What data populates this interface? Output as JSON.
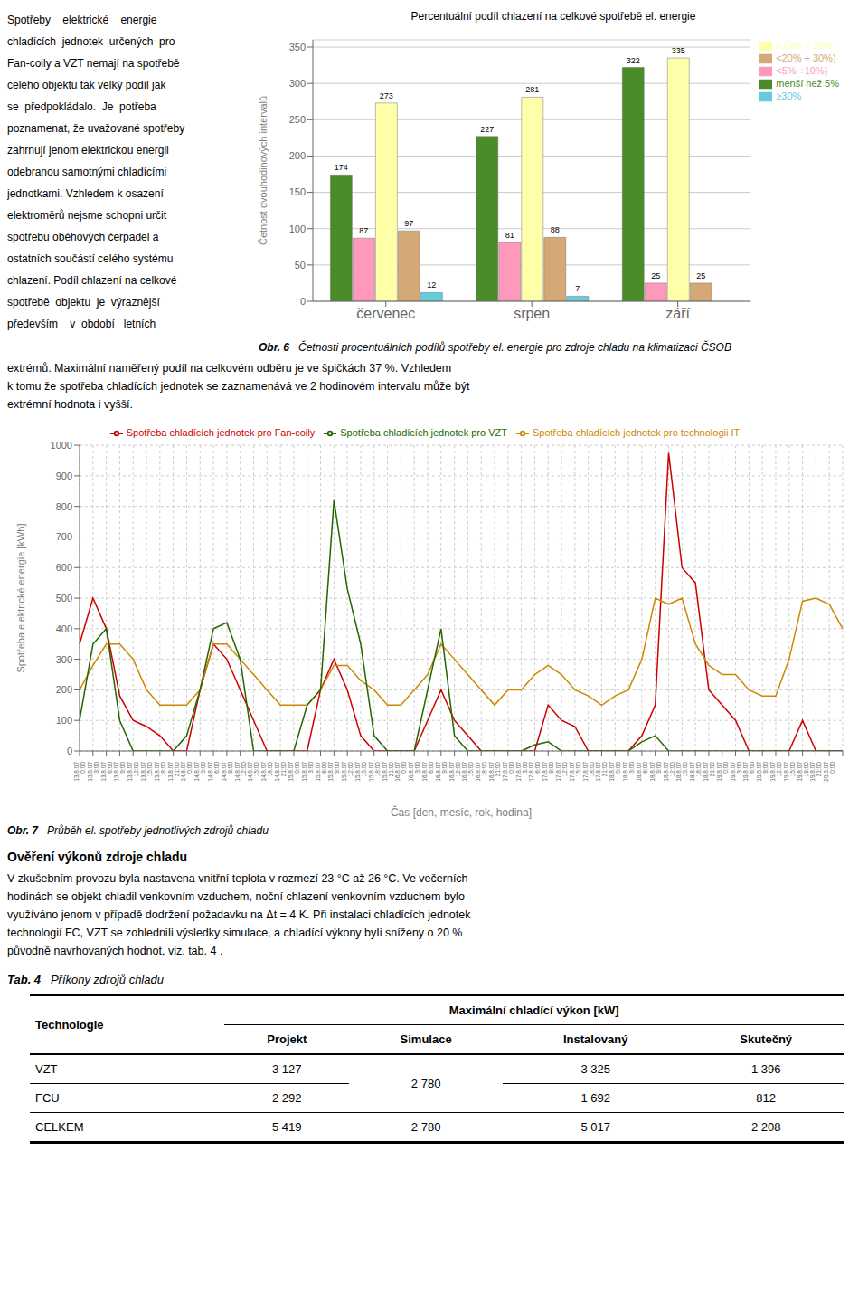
{
  "chart_data": [
    {
      "type": "bar",
      "title": "Percentuální podíl chlazení na celkové spotřebě el. energie",
      "ylabel": "Četnost dvouhodinových intervalů",
      "categories": [
        "červenec",
        "srpen",
        "září"
      ],
      "series": [
        {
          "name": "menší než 5%",
          "color": "#4a8c28",
          "values": [
            174,
            227,
            322
          ]
        },
        {
          "name": "<5% ÷10%)",
          "color": "#ff99bb",
          "values": [
            87,
            81,
            25
          ]
        },
        {
          "name": "<10% ÷ 20%)",
          "color": "#ffffaa",
          "values": [
            273,
            281,
            335
          ]
        },
        {
          "name": "<20% ÷ 30%)",
          "color": "#d4a877",
          "values": [
            97,
            88,
            25
          ]
        },
        {
          "name": "≥30%",
          "color": "#66ccdd",
          "values": [
            12,
            7,
            0
          ]
        }
      ],
      "ylim": [
        0,
        360
      ],
      "yticks": [
        0,
        50,
        100,
        150,
        200,
        250,
        300,
        350
      ],
      "grid": true,
      "legend": "right",
      "data_labels": true,
      "annotations": [
        [
          "Spotřeby    elektrické    energie",
          "chladících  jednotek  určených  pro",
          "Fan-coily a VZT nemají na spotřebě",
          "celého objektu tak velký podíl jak",
          "se  předpokládalo.  Je  potřeba",
          "poznamenat, že uvažované spotřeby",
          "zahrnují jenom elektrickou energii",
          "odebranou samotnými chladícími",
          "jednotkami. Vzhledem k osazení",
          "elektroměrů nejsme schopni určit",
          "spotřebu oběhových čerpadel a",
          "ostatních součástí celého systému",
          "chlazení. Podíl chlazení na celkové",
          "spotřebě  objektu  je  výraznější",
          "především    v  období   letních"
        ],
        [
          "Obr. 6",
          "Četnosti procentuálních podílů spotřeby el. energie pro zdroje chladu na klimatizaci ČSOB"
        ],
        [
          "extrémů. Maximální naměřený podíl na celkovém odběru je ve špičkách 37 %. Vzhledem",
          "k tomu že spotřeba chladících jednotek se zaznamenává ve 2 hodinovém intervalu může být",
          "extrémní hodnota i vyšší."
        ]
      ]
    },
    {
      "type": "line",
      "xlabel": "Čas [den, mesíc, rok, hodina]",
      "ylabel": "Spotřeba elektrické energie [kWh]",
      "categories": [
        "13.8.07\n0:00",
        "13.8.07\n3:00",
        "13.8.07\n6:00",
        "13.8.07\n9:00",
        "13.8.07\n12:00",
        "13.8.07\n15:00",
        "13.8.07\n18:00",
        "13.8.07\n21:00",
        "14.8.07\n0:00",
        "14.8.07\n3:00",
        "14.8.07\n6:00",
        "14.8.07\n9:00",
        "14.8.07\n12:00",
        "14.8.07\n15:00",
        "14.8.07\n18:00",
        "14.8.07\n21:00",
        "15.8.07\n0:00",
        "15.8.07\n3:00",
        "15.8.07\n6:00",
        "15.8.07\n9:00",
        "15.8.07\n12:00",
        "15.8.07\n15:00",
        "15.8.07\n18:00",
        "15.8.07\n21:00",
        "16.8.07\n0:00",
        "16.8.07\n3:00",
        "16.8.07\n6:00",
        "16.8.07\n9:00",
        "16.8.07\n12:00",
        "16.8.07\n15:00",
        "16.8.07\n18:00",
        "16.8.07\n21:00",
        "17.8.07\n0:00",
        "17.8.07\n3:00",
        "17.8.07\n6:00",
        "17.8.07\n9:00",
        "17.8.07\n12:00",
        "17.8.07\n15:00",
        "17.8.07\n18:00",
        "17.8.07\n21:00",
        "18.8.07\n0:00",
        "18.8.07\n3:00",
        "18.8.07\n6:00",
        "18.8.07\n9:00",
        "18.8.07\n12:00",
        "18.8.07\n15:00",
        "18.8.07\n18:00",
        "18.8.07\n21:00",
        "19.8.07\n0:00",
        "19.8.07\n3:00",
        "19.8.07\n6:00",
        "19.8.07\n9:00",
        "19.8.07\n12:00",
        "19.8.07\n15:00",
        "19.8.07\n18:00",
        "19.8.07\n21:00",
        "20.3.07\n0:00",
        null
      ],
      "series": [
        {
          "name": "Spotřeba chladících jednotek pro Fan-coily",
          "color": "#cc0000",
          "values": [
            350,
            500,
            400,
            180,
            100,
            80,
            50,
            0,
            0,
            200,
            350,
            300,
            200,
            100,
            0,
            0,
            0,
            0,
            200,
            300,
            200,
            50,
            0,
            0,
            0,
            0,
            100,
            200,
            100,
            50,
            0,
            0,
            0,
            0,
            0,
            150,
            100,
            80,
            0,
            0,
            0,
            0,
            50,
            150,
            975,
            600,
            550,
            200,
            150,
            100,
            0,
            0,
            0,
            0,
            100,
            0,
            0,
            0
          ]
        },
        {
          "name": "Spotřeba chladících jednotek pro technologii IT",
          "color": "#cc8800",
          "values": [
            200,
            280,
            350,
            350,
            300,
            200,
            150,
            150,
            150,
            200,
            350,
            350,
            300,
            250,
            200,
            150,
            150,
            150,
            200,
            280,
            280,
            230,
            200,
            150,
            150,
            200,
            250,
            350,
            300,
            250,
            200,
            150,
            200,
            200,
            250,
            280,
            250,
            200,
            180,
            150,
            180,
            200,
            300,
            500,
            480,
            500,
            350,
            280,
            250,
            250,
            200,
            180,
            180,
            300,
            490,
            500,
            480,
            400
          ]
        },
        {
          "name": "Spotřeba chladících jednotek pro VZT",
          "color": "#226600",
          "values": [
            100,
            350,
            400,
            100,
            0,
            0,
            0,
            0,
            50,
            200,
            400,
            420,
            300,
            0,
            0,
            0,
            0,
            150,
            200,
            820,
            530,
            350,
            50,
            0,
            0,
            0,
            200,
            400,
            50,
            0,
            0,
            0,
            0,
            0,
            20,
            30,
            0,
            0,
            0,
            0,
            0,
            0,
            30,
            50,
            0,
            0,
            0,
            0,
            0,
            0,
            0,
            0,
            0,
            0,
            0,
            0,
            0,
            0
          ]
        }
      ],
      "ylim": [
        0,
        1000
      ],
      "yticks": [
        0,
        100,
        200,
        300,
        400,
        500,
        600,
        700,
        800,
        900,
        1000
      ],
      "grid": true,
      "legend": "top",
      "annotations": [
        [
          "Obr. 7",
          "Průběh el. spotřeby jednotlivých zdrojů chladu"
        ],
        [
          "Ověření výkonů zdroje chladu"
        ],
        [
          "V zkušebním provozu byla nastavena vnitřní teplota v rozmezí 23 °C až 26 °C. Ve večerních",
          "hodinách se objekt chladil venkovním vzduchem, noční chlazení venkovním vzduchem bylo",
          "využíváno jenom v případě dodržení požadavku na Δt = 4 K. Při instalaci chladících jednotek",
          "technologií FC, VZT se zohledniIi výsledky simulace, a chIadící výkony byIi sníženy o 20 %",
          "původně navrhovaných hodnot, viz. tab. 4 ."
        ]
      ]
    },
    {
      "type": "table",
      "title": [
        "Tab. 4",
        "Příkony zdrojů chladu"
      ],
      "header": [
        "Technologie",
        "Maximální chIadící výkon [kW]"
      ],
      "columns": [
        "Projekt",
        "Simulace",
        "Instalovaný",
        "Skutečný"
      ],
      "rows": [
        [
          "VZT",
          "3 127",
          "2 780",
          "3 325",
          "1 396"
        ],
        [
          "FCU",
          "2 292",
          null,
          "1 692",
          "812"
        ],
        [
          "CELKEM",
          "5 419",
          "2 780",
          "5 017",
          "2 208"
        ]
      ]
    }
  ]
}
